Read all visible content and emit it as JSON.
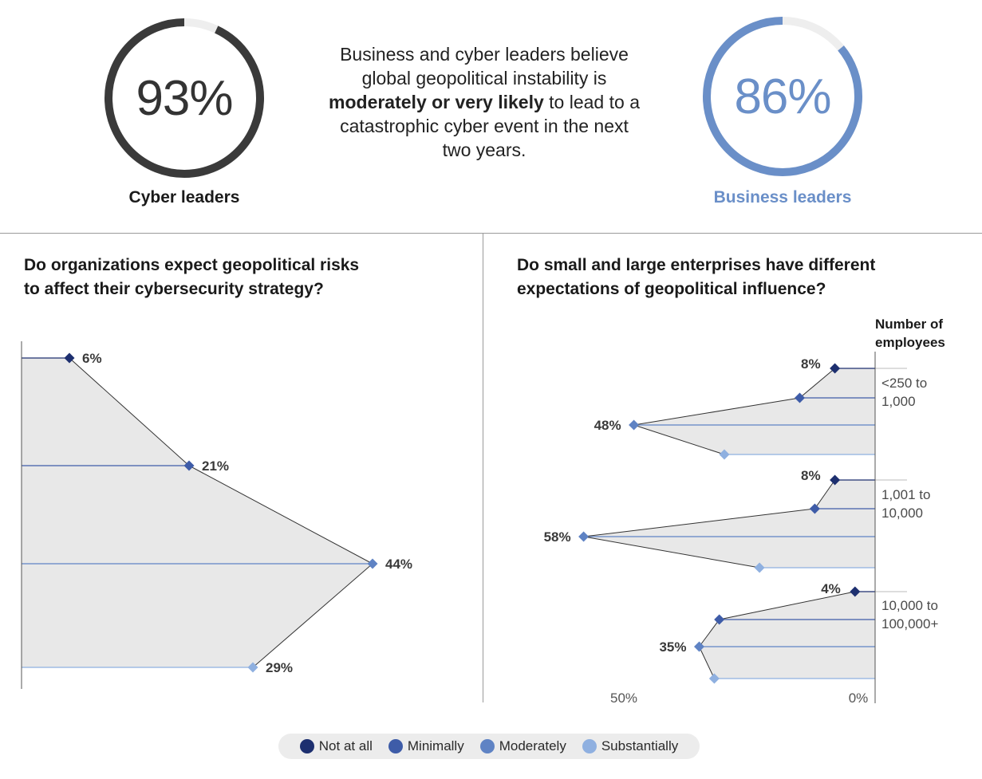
{
  "rings": {
    "cyber": {
      "value_text": "93%",
      "fraction": 0.93,
      "label": "Cyber leaders",
      "color": "#3a3a3a",
      "track_color": "#eeeeee"
    },
    "business": {
      "value_text": "86%",
      "fraction": 0.86,
      "label": "Business leaders",
      "color": "#6a8fc8",
      "track_color": "#eeeeee"
    }
  },
  "headline": {
    "part1": "Business and cyber leaders believe global geopolitical instability is ",
    "bold": "moderately or very likely",
    "part2": " to lead to a catastrophic cyber event in the next two years."
  },
  "left_panel": {
    "title_line1": "Do organizations expect geopolitical risks",
    "title_line2": "to affect their cybersecurity strategy?"
  },
  "right_panel": {
    "title_line1": "Do small and large enterprises have different",
    "title_line2": "expectations of geopolitical influence?",
    "axis_header_line1": "Number of",
    "axis_header_line2": "employees"
  },
  "legend": [
    {
      "label": "Not at all",
      "color": "#1d2f6f"
    },
    {
      "label": "Minimally",
      "color": "#3e5ca8"
    },
    {
      "label": "Moderately",
      "color": "#5f83c4"
    },
    {
      "label": "Substantially",
      "color": "#8fb0e0"
    }
  ],
  "chart_data": [
    {
      "type": "line",
      "title": "Do organizations expect geopolitical risks to affect their cybersecurity strategy?",
      "categories": [
        "Not at all",
        "Minimally",
        "Moderately",
        "Substantially"
      ],
      "values": [
        6,
        21,
        44,
        29
      ],
      "value_labels": [
        "6%",
        "21%",
        "44%",
        "29%"
      ],
      "unit": "%"
    },
    {
      "type": "line",
      "title": "Do small and large enterprises have different expectations of geopolitical influence?",
      "axis_title": "Number of employees",
      "x_tick_labels": [
        "50%",
        "0%"
      ],
      "categories": [
        "Not at all",
        "Minimally",
        "Moderately",
        "Substantially"
      ],
      "groups": [
        {
          "name_line1": "<250 to",
          "name_line2": "1,000",
          "values": [
            8,
            15,
            48,
            30
          ],
          "value_labels": [
            "8%",
            null,
            "48%",
            null
          ]
        },
        {
          "name_line1": "1,001 to",
          "name_line2": "10,000",
          "values": [
            8,
            12,
            58,
            23
          ],
          "value_labels": [
            "8%",
            null,
            "58%",
            null
          ]
        },
        {
          "name_line1": "10,000 to",
          "name_line2": "100,000+",
          "values": [
            4,
            31,
            35,
            32
          ],
          "value_labels": [
            "4%",
            null,
            "35%",
            null
          ]
        }
      ]
    }
  ]
}
